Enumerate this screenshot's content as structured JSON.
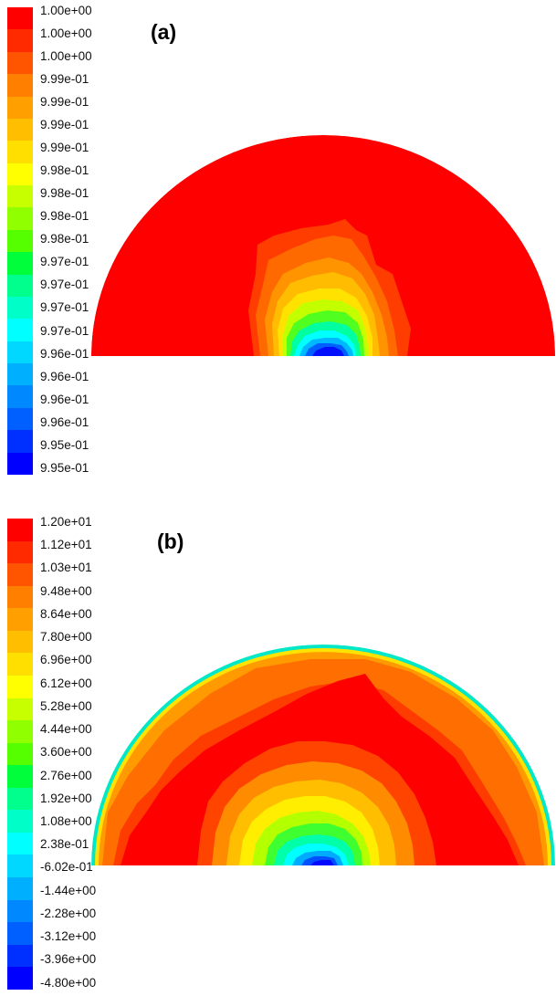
{
  "panels": [
    {
      "title": "(a)",
      "legend_labels": [
        "1.00e+00",
        "1.00e+00",
        "1.00e+00",
        "9.99e-01",
        "9.99e-01",
        "9.99e-01",
        "9.99e-01",
        "9.98e-01",
        "9.98e-01",
        "9.98e-01",
        "9.98e-01",
        "9.97e-01",
        "9.97e-01",
        "9.97e-01",
        "9.97e-01",
        "9.96e-01",
        "9.96e-01",
        "9.96e-01",
        "9.96e-01",
        "9.95e-01",
        "9.95e-01"
      ]
    },
    {
      "title": "(b)",
      "legend_labels": [
        "1.20e+01",
        "1.12e+01",
        "1.03e+01",
        "9.48e+00",
        "8.64e+00",
        "7.80e+00",
        "6.96e+00",
        "6.12e+00",
        "5.28e+00",
        "4.44e+00",
        "3.60e+00",
        "2.76e+00",
        "1.92e+00",
        "1.08e+00",
        "2.38e-01",
        "-6.02e-01",
        "-1.44e+00",
        "-2.28e+00",
        "-3.12e+00",
        "-3.96e+00",
        "-4.80e+00"
      ]
    }
  ],
  "colormap": [
    "#ff0000",
    "#ff2a00",
    "#ff5500",
    "#ff7f00",
    "#ffa000",
    "#ffbf00",
    "#ffdf00",
    "#ffff00",
    "#c8ff00",
    "#90ff00",
    "#55ff00",
    "#00ff3a",
    "#00ff8c",
    "#00ffc8",
    "#00ffff",
    "#00d8ff",
    "#00b0ff",
    "#0088ff",
    "#0060ff",
    "#0030ff",
    "#0000ff"
  ]
}
